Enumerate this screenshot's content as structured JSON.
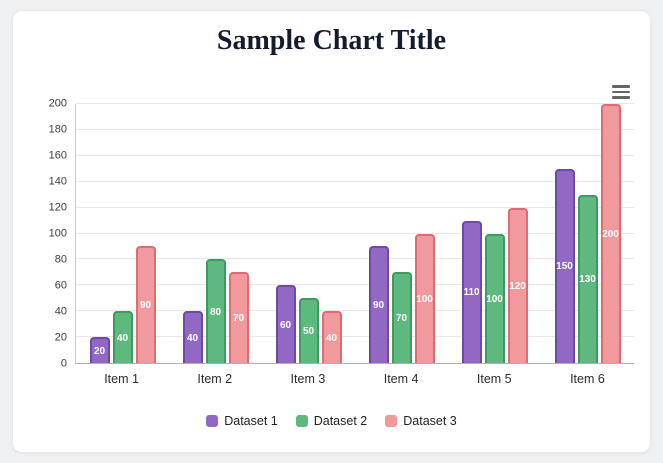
{
  "page": {
    "background_color": "#eef0f2",
    "card_color": "#ffffff"
  },
  "menu": {
    "icon": "hamburger-icon"
  },
  "chart_data": {
    "type": "bar",
    "title": "Sample Chart Title",
    "categories": [
      "Item 1",
      "Item 2",
      "Item 3",
      "Item 4",
      "Item 5",
      "Item 6"
    ],
    "series": [
      {
        "name": "Dataset 1",
        "color": "#9168c3",
        "border_color": "#6d4aa3",
        "values": [
          20,
          40,
          60,
          90,
          110,
          150
        ]
      },
      {
        "name": "Dataset 2",
        "color": "#5eb97f",
        "border_color": "#3d9a61",
        "values": [
          40,
          80,
          50,
          70,
          100,
          130
        ]
      },
      {
        "name": "Dataset 3",
        "color": "#f09a9e",
        "border_color": "#e06a72",
        "values": [
          90,
          70,
          40,
          100,
          120,
          200
        ]
      }
    ],
    "ylim": [
      0,
      200
    ],
    "y_ticks": [
      0,
      20,
      40,
      60,
      80,
      100,
      120,
      140,
      160,
      180,
      200
    ],
    "grid": true,
    "legend_position": "bottom",
    "data_labels": true
  }
}
